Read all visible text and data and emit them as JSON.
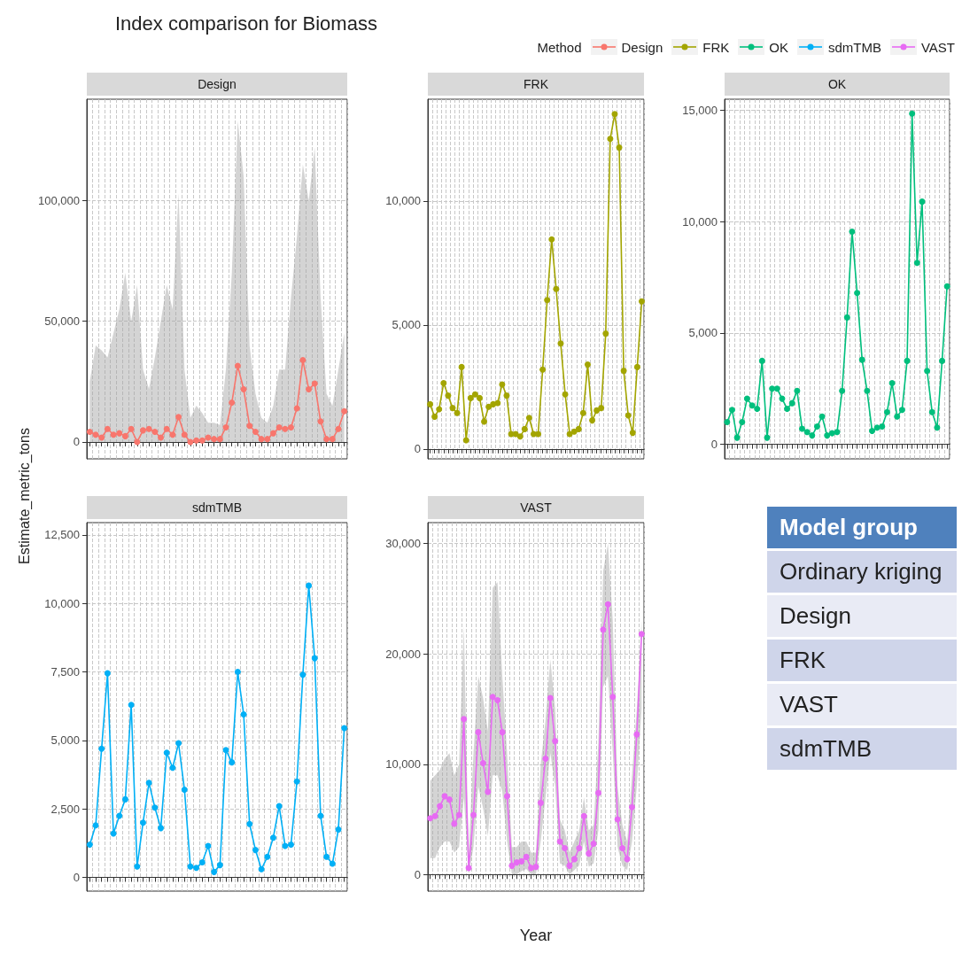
{
  "chart_data": [
    {
      "type": "line",
      "title": "Index comparison for Biomass",
      "subtitle": "Design",
      "legend_title": "Method",
      "legend": "top right",
      "ylabel": "Estimate_metric_tons",
      "grid": true,
      "marker": "circle",
      "line_style": "solid",
      "tick_labels": "y",
      "categories": [
        null,
        null,
        null,
        null,
        null,
        null,
        null,
        null,
        null,
        null,
        null,
        null,
        null,
        null,
        null,
        null,
        null,
        null,
        null,
        null,
        null,
        null,
        null,
        null,
        null,
        null,
        null,
        null,
        null,
        null,
        null,
        null,
        null,
        null,
        null,
        null,
        null,
        null,
        null,
        null,
        null,
        null,
        null,
        null
      ],
      "ylim": [
        -7000,
        142000
      ],
      "yticks": [
        {
          "value": 0,
          "label": "0"
        },
        {
          "value": 50000,
          "label": "50,000"
        },
        {
          "value": 100000,
          "label": "100,000"
        }
      ],
      "series": [
        {
          "name": "Design",
          "color": "#f8766d",
          "values": [
            4200,
            3000,
            1800,
            5400,
            3000,
            3600,
            2400,
            5400,
            0,
            4800,
            5400,
            4200,
            1800,
            5400,
            3000,
            10300,
            3000,
            0,
            600,
            600,
            1800,
            1200,
            1200,
            6000,
            16300,
            31500,
            21800,
            6700,
            4200,
            1200,
            1200,
            3600,
            6000,
            5400,
            6000,
            13900,
            33900,
            21800,
            24200,
            8500,
            1200,
            1200,
            5400,
            12700
          ],
          "lower": [
            0,
            0,
            0,
            0,
            0,
            0,
            0,
            0,
            0,
            0,
            0,
            0,
            0,
            0,
            0,
            0,
            0,
            0,
            0,
            0,
            0,
            0,
            0,
            0,
            0,
            0,
            0,
            0,
            0,
            0,
            0,
            0,
            0,
            0,
            0,
            0,
            0,
            0,
            0,
            0,
            0,
            0,
            0,
            0
          ],
          "upper": [
            25000,
            40000,
            38000,
            35000,
            45000,
            55000,
            70000,
            50000,
            65000,
            30000,
            22000,
            35000,
            50000,
            65000,
            55000,
            103000,
            30000,
            10000,
            15000,
            12000,
            8000,
            8000,
            7000,
            30000,
            70000,
            133000,
            110000,
            40000,
            20000,
            10000,
            8000,
            15000,
            30000,
            30000,
            60000,
            85000,
            115000,
            100000,
            122000,
            60000,
            20000,
            15000,
            30000,
            45000
          ]
        }
      ]
    },
    {
      "type": "line",
      "subtitle": "FRK",
      "grid": true,
      "marker": "circle",
      "line_style": "solid",
      "tick_labels": "y",
      "categories": [
        null,
        null,
        null,
        null,
        null,
        null,
        null,
        null,
        null,
        null,
        null,
        null,
        null,
        null,
        null,
        null,
        null,
        null,
        null,
        null,
        null,
        null,
        null,
        null,
        null,
        null,
        null,
        null,
        null,
        null,
        null,
        null,
        null,
        null,
        null,
        null,
        null,
        null,
        null,
        null,
        null,
        null,
        null,
        null,
        null,
        null,
        null,
        null
      ],
      "ylim": [
        -400,
        14100
      ],
      "yticks": [
        {
          "value": 0,
          "label": "0"
        },
        {
          "value": 5000,
          "label": "5,000"
        },
        {
          "value": 10000,
          "label": "10,000"
        }
      ],
      "series": [
        {
          "name": "FRK",
          "color": "#a3a500",
          "values": [
            1800,
            1300,
            1600,
            2650,
            2150,
            1650,
            1450,
            3300,
            350,
            2050,
            2200,
            2050,
            1100,
            1700,
            1800,
            1850,
            2600,
            2150,
            600,
            600,
            500,
            800,
            1250,
            600,
            600,
            3200,
            6000,
            8450,
            6450,
            4250,
            2200,
            600,
            700,
            800,
            1450,
            3400,
            1150,
            1550,
            1650,
            4650,
            12500,
            13500,
            12150,
            3150,
            1350,
            650,
            3300,
            5950
          ]
        }
      ]
    },
    {
      "type": "line",
      "subtitle": "OK",
      "grid": true,
      "marker": "circle",
      "line_style": "solid",
      "tick_labels": "y",
      "categories": [
        null,
        null,
        null,
        null,
        null,
        null,
        null,
        null,
        null,
        null,
        null,
        null,
        null,
        null,
        null,
        null,
        null,
        null,
        null,
        null,
        null,
        null,
        null,
        null,
        null,
        null,
        null,
        null,
        null,
        null,
        null,
        null,
        null,
        null,
        null,
        null,
        null,
        null,
        null,
        null,
        null,
        null,
        null,
        null,
        null
      ],
      "ylim": [
        -650,
        15500
      ],
      "yticks": [
        {
          "value": 0,
          "label": "0"
        },
        {
          "value": 5000,
          "label": "5,000"
        },
        {
          "value": 10000,
          "label": "10,000"
        },
        {
          "value": 15000,
          "label": "15,000"
        }
      ],
      "series": [
        {
          "name": "OK",
          "color": "#00bf7d",
          "values": [
            1000,
            1550,
            300,
            1000,
            2050,
            1750,
            1600,
            3750,
            300,
            2500,
            2500,
            2050,
            1600,
            1850,
            2400,
            700,
            550,
            400,
            800,
            1250,
            400,
            500,
            550,
            2400,
            5700,
            9550,
            6800,
            3800,
            2400,
            600,
            750,
            800,
            1450,
            2750,
            1250,
            1550,
            3750,
            14850,
            8150,
            10900,
            3300,
            1450,
            750,
            3750,
            7100
          ]
        }
      ]
    },
    {
      "type": "line",
      "subtitle": "sdmTMB",
      "grid": true,
      "marker": "circle",
      "line_style": "solid",
      "tick_labels": "y",
      "categories": [
        null,
        null,
        null,
        null,
        null,
        null,
        null,
        null,
        null,
        null,
        null,
        null,
        null,
        null,
        null,
        null,
        null,
        null,
        null,
        null,
        null,
        null,
        null,
        null,
        null,
        null,
        null,
        null,
        null,
        null,
        null,
        null,
        null,
        null,
        null,
        null,
        null,
        null,
        null,
        null,
        null,
        null,
        null,
        null
      ],
      "ylim": [
        -500,
        12950
      ],
      "yticks": [
        {
          "value": 0,
          "label": "0"
        },
        {
          "value": 2500,
          "label": "2,500"
        },
        {
          "value": 5000,
          "label": "5,000"
        },
        {
          "value": 7500,
          "label": "7,500"
        },
        {
          "value": 10000,
          "label": "10,000"
        },
        {
          "value": 12500,
          "label": "12,500"
        }
      ],
      "series": [
        {
          "name": "sdmTMB",
          "color": "#00b0f6",
          "values": [
            1200,
            1900,
            4700,
            7450,
            1600,
            2250,
            2850,
            6300,
            400,
            2000,
            3450,
            2550,
            1800,
            4550,
            4000,
            4900,
            3200,
            400,
            350,
            550,
            1150,
            200,
            450,
            4650,
            4200,
            7500,
            5950,
            1950,
            1000,
            300,
            750,
            1450,
            2600,
            1150,
            1200,
            3500,
            7400,
            10650,
            8000,
            2250,
            750,
            500,
            1750,
            5450
          ]
        }
      ]
    },
    {
      "type": "line",
      "subtitle": "VAST",
      "xlabel": "Year",
      "grid": true,
      "marker": "circle",
      "line_style": "solid",
      "tick_labels": "y",
      "categories": [
        null,
        null,
        null,
        null,
        null,
        null,
        null,
        null,
        null,
        null,
        null,
        null,
        null,
        null,
        null,
        null,
        null,
        null,
        null,
        null,
        null,
        null,
        null,
        null,
        null,
        null,
        null,
        null,
        null,
        null,
        null,
        null,
        null,
        null,
        null,
        null,
        null,
        null,
        null,
        null,
        null,
        null,
        null,
        null,
        null
      ],
      "ylim": [
        -1500,
        31900
      ],
      "yticks": [
        {
          "value": 0,
          "label": "0"
        },
        {
          "value": 10000,
          "label": "10,000"
        },
        {
          "value": 20000,
          "label": "20,000"
        },
        {
          "value": 30000,
          "label": "30,000"
        }
      ],
      "series": [
        {
          "name": "VAST",
          "color": "#e76bf3",
          "values": [
            5100,
            5300,
            6200,
            7100,
            6800,
            4600,
            5400,
            14100,
            600,
            5400,
            12900,
            10100,
            7500,
            16100,
            15800,
            12900,
            7100,
            800,
            1100,
            1200,
            1600,
            600,
            700,
            6500,
            10500,
            16000,
            12100,
            3000,
            2400,
            800,
            1400,
            2400,
            5300,
            1900,
            2800,
            7400,
            22200,
            24500,
            16100,
            5000,
            2400,
            1400,
            6100,
            12700,
            21800
          ],
          "lower": [
            1500,
            1500,
            2500,
            3000,
            3000,
            2000,
            2500,
            7000,
            0,
            2500,
            8000,
            6000,
            3500,
            9000,
            9000,
            7500,
            3000,
            0,
            0,
            300,
            500,
            0,
            0,
            3000,
            7000,
            11000,
            8000,
            1000,
            800,
            0,
            400,
            800,
            3000,
            700,
            1000,
            4000,
            17000,
            18000,
            11000,
            2500,
            800,
            400,
            3000,
            8000,
            15000
          ],
          "upper": [
            8500,
            9000,
            9500,
            10500,
            11000,
            9000,
            10000,
            22500,
            2000,
            11000,
            18000,
            16000,
            13000,
            26000,
            26500,
            18000,
            11000,
            2500,
            2500,
            3000,
            3000,
            2000,
            2000,
            10000,
            14000,
            19500,
            15000,
            5000,
            4000,
            2000,
            3000,
            4000,
            7000,
            4000,
            4500,
            12000,
            27500,
            30000,
            23000,
            8000,
            4500,
            3000,
            9000,
            15000,
            23000
          ]
        }
      ]
    },
    {
      "type": "other",
      "annotations": [
        "Model group",
        "Ordinary kriging",
        "Design",
        "FRK",
        "VAST",
        "sdmTMB"
      ]
    }
  ]
}
